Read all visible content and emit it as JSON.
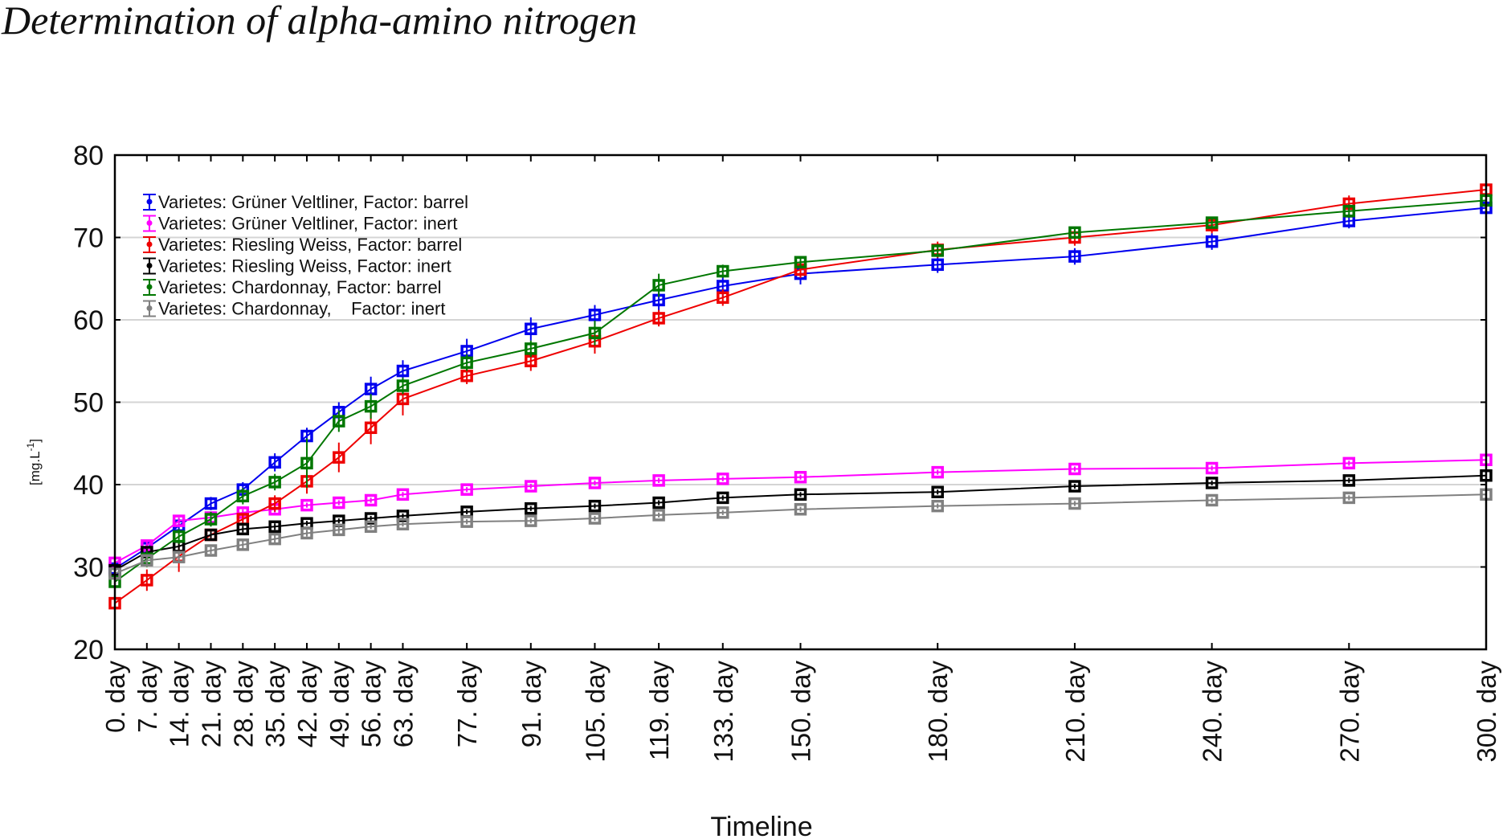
{
  "chart_data": {
    "type": "line",
    "title": "Determination of alpha-amino nitrogen",
    "xlabel": "Timeline",
    "ylabel": "[mg.L-1]",
    "ylabel_base": "[mg.L",
    "ylabel_sup": "-1",
    "ylabel_close": "]",
    "ylim": [
      20,
      80
    ],
    "yticks": [
      20,
      30,
      40,
      50,
      60,
      70,
      80
    ],
    "xlim": [
      0,
      300
    ],
    "grid": "horizontal",
    "legend_position": "top-left",
    "x": [
      0,
      7,
      14,
      21,
      28,
      35,
      42,
      49,
      56,
      63,
      77,
      91,
      105,
      119,
      133,
      150,
      180,
      210,
      240,
      270,
      300
    ],
    "categories": [
      "0. day",
      "7. day",
      "14. day",
      "21. day",
      "28. day",
      "35. day",
      "42. day",
      "49. day",
      "56. day",
      "63. day",
      "77. day",
      "91. day",
      "105. day",
      "119. day",
      "133. day",
      "150. day",
      "180. day",
      "210. day",
      "240. day",
      "270. day",
      "300. day"
    ],
    "series": [
      {
        "name": "Varietes: Grüner Veltliner, Factor: barrel",
        "legend_label": "Varietes: Grüner Veltliner, Factor: barrel",
        "color": "#0000ee",
        "values": [
          29.8,
          32.3,
          35.0,
          37.7,
          39.4,
          42.7,
          45.9,
          48.8,
          51.6,
          53.8,
          56.2,
          58.9,
          60.6,
          62.4,
          64.1,
          65.6,
          66.7,
          67.7,
          69.5,
          72.0,
          73.6
        ],
        "errors": [
          0.8,
          0.9,
          0.9,
          0.8,
          0.9,
          1.1,
          1.0,
          1.2,
          1.5,
          1.3,
          1.5,
          1.4,
          1.2,
          1.4,
          1.3,
          1.3,
          1.0,
          1.0,
          1.0,
          0.9,
          0.8
        ]
      },
      {
        "name": "Varietes: Grüner Veltliner, Factor: inert",
        "legend_label": "Varietes: Grüner Veltliner, Factor: inert",
        "color": "#ff00ff",
        "values": [
          30.5,
          32.6,
          35.6,
          36.0,
          36.6,
          37.0,
          37.5,
          37.8,
          38.1,
          38.8,
          39.4,
          39.8,
          40.2,
          40.5,
          40.7,
          40.9,
          41.5,
          41.9,
          42.0,
          42.6,
          43.0
        ],
        "errors": [
          0.9,
          0.6,
          0.4,
          0.4,
          0.4,
          0.4,
          0.3,
          0.3,
          0.3,
          0.3,
          0.3,
          0.3,
          0.3,
          0.3,
          0.3,
          0.3,
          0.3,
          0.3,
          0.3,
          0.3,
          0.3
        ]
      },
      {
        "name": "Varietes: Riesling Weiss, Factor: barrel",
        "legend_label": "Varietes: Riesling Weiss, Factor: barrel",
        "color": "#ee0000",
        "values": [
          25.6,
          28.4,
          31.3,
          33.9,
          35.8,
          37.7,
          40.4,
          43.3,
          46.9,
          50.4,
          53.2,
          55.0,
          57.4,
          60.2,
          62.7,
          66.1,
          68.5,
          70.0,
          71.5,
          74.1,
          75.8
        ],
        "errors": [
          1.0,
          1.3,
          1.9,
          0.6,
          0.7,
          1.0,
          1.5,
          1.8,
          2.0,
          2.0,
          1.0,
          1.2,
          1.5,
          1.0,
          1.0,
          1.0,
          1.0,
          1.0,
          1.0,
          1.0,
          0.8
        ]
      },
      {
        "name": "Varietes: Riesling Weiss, Factor: inert",
        "legend_label": "Varietes: Riesling Weiss, Factor: inert",
        "color": "#000000",
        "values": [
          29.6,
          31.8,
          32.5,
          33.9,
          34.6,
          34.9,
          35.3,
          35.6,
          35.9,
          36.2,
          36.7,
          37.1,
          37.4,
          37.8,
          38.4,
          38.8,
          39.1,
          39.8,
          40.2,
          40.5,
          41.1
        ],
        "errors": [
          0.5,
          0.4,
          0.4,
          0.4,
          0.4,
          0.4,
          0.3,
          0.3,
          0.3,
          0.3,
          0.3,
          0.3,
          0.3,
          0.3,
          0.3,
          0.3,
          0.3,
          0.3,
          0.3,
          0.3,
          0.3
        ]
      },
      {
        "name": "Varietes: Chardonnay, Factor: barrel",
        "legend_label": "Varietes: Chardonnay, Factor: barrel",
        "color": "#007700",
        "values": [
          28.2,
          31.0,
          33.7,
          35.8,
          38.6,
          40.3,
          42.6,
          47.7,
          49.5,
          52.0,
          54.8,
          56.5,
          58.4,
          64.2,
          65.9,
          67.0,
          68.4,
          70.6,
          71.8,
          73.2,
          74.5
        ],
        "errors": [
          1.2,
          1.0,
          0.9,
          0.9,
          1.0,
          1.0,
          3.0,
          1.3,
          1.5,
          1.0,
          1.0,
          1.0,
          1.5,
          1.4,
          0.8,
          0.7,
          0.8,
          0.7,
          0.7,
          0.8,
          0.7
        ]
      },
      {
        "name": "Varietes: Chardonnay, Factor: inert",
        "legend_label": "Varietes: Chardonnay,    Factor: inert",
        "color": "#808080",
        "values": [
          29.2,
          30.8,
          31.2,
          32.0,
          32.7,
          33.4,
          34.1,
          34.5,
          34.9,
          35.2,
          35.5,
          35.6,
          35.9,
          36.3,
          36.6,
          37.0,
          37.4,
          37.7,
          38.1,
          38.4,
          38.8
        ],
        "errors": [
          0.6,
          0.6,
          0.5,
          0.4,
          0.6,
          0.5,
          0.4,
          0.4,
          0.3,
          0.3,
          0.3,
          0.3,
          0.3,
          0.3,
          0.3,
          0.3,
          0.3,
          0.3,
          0.3,
          0.3,
          0.3
        ]
      }
    ]
  }
}
